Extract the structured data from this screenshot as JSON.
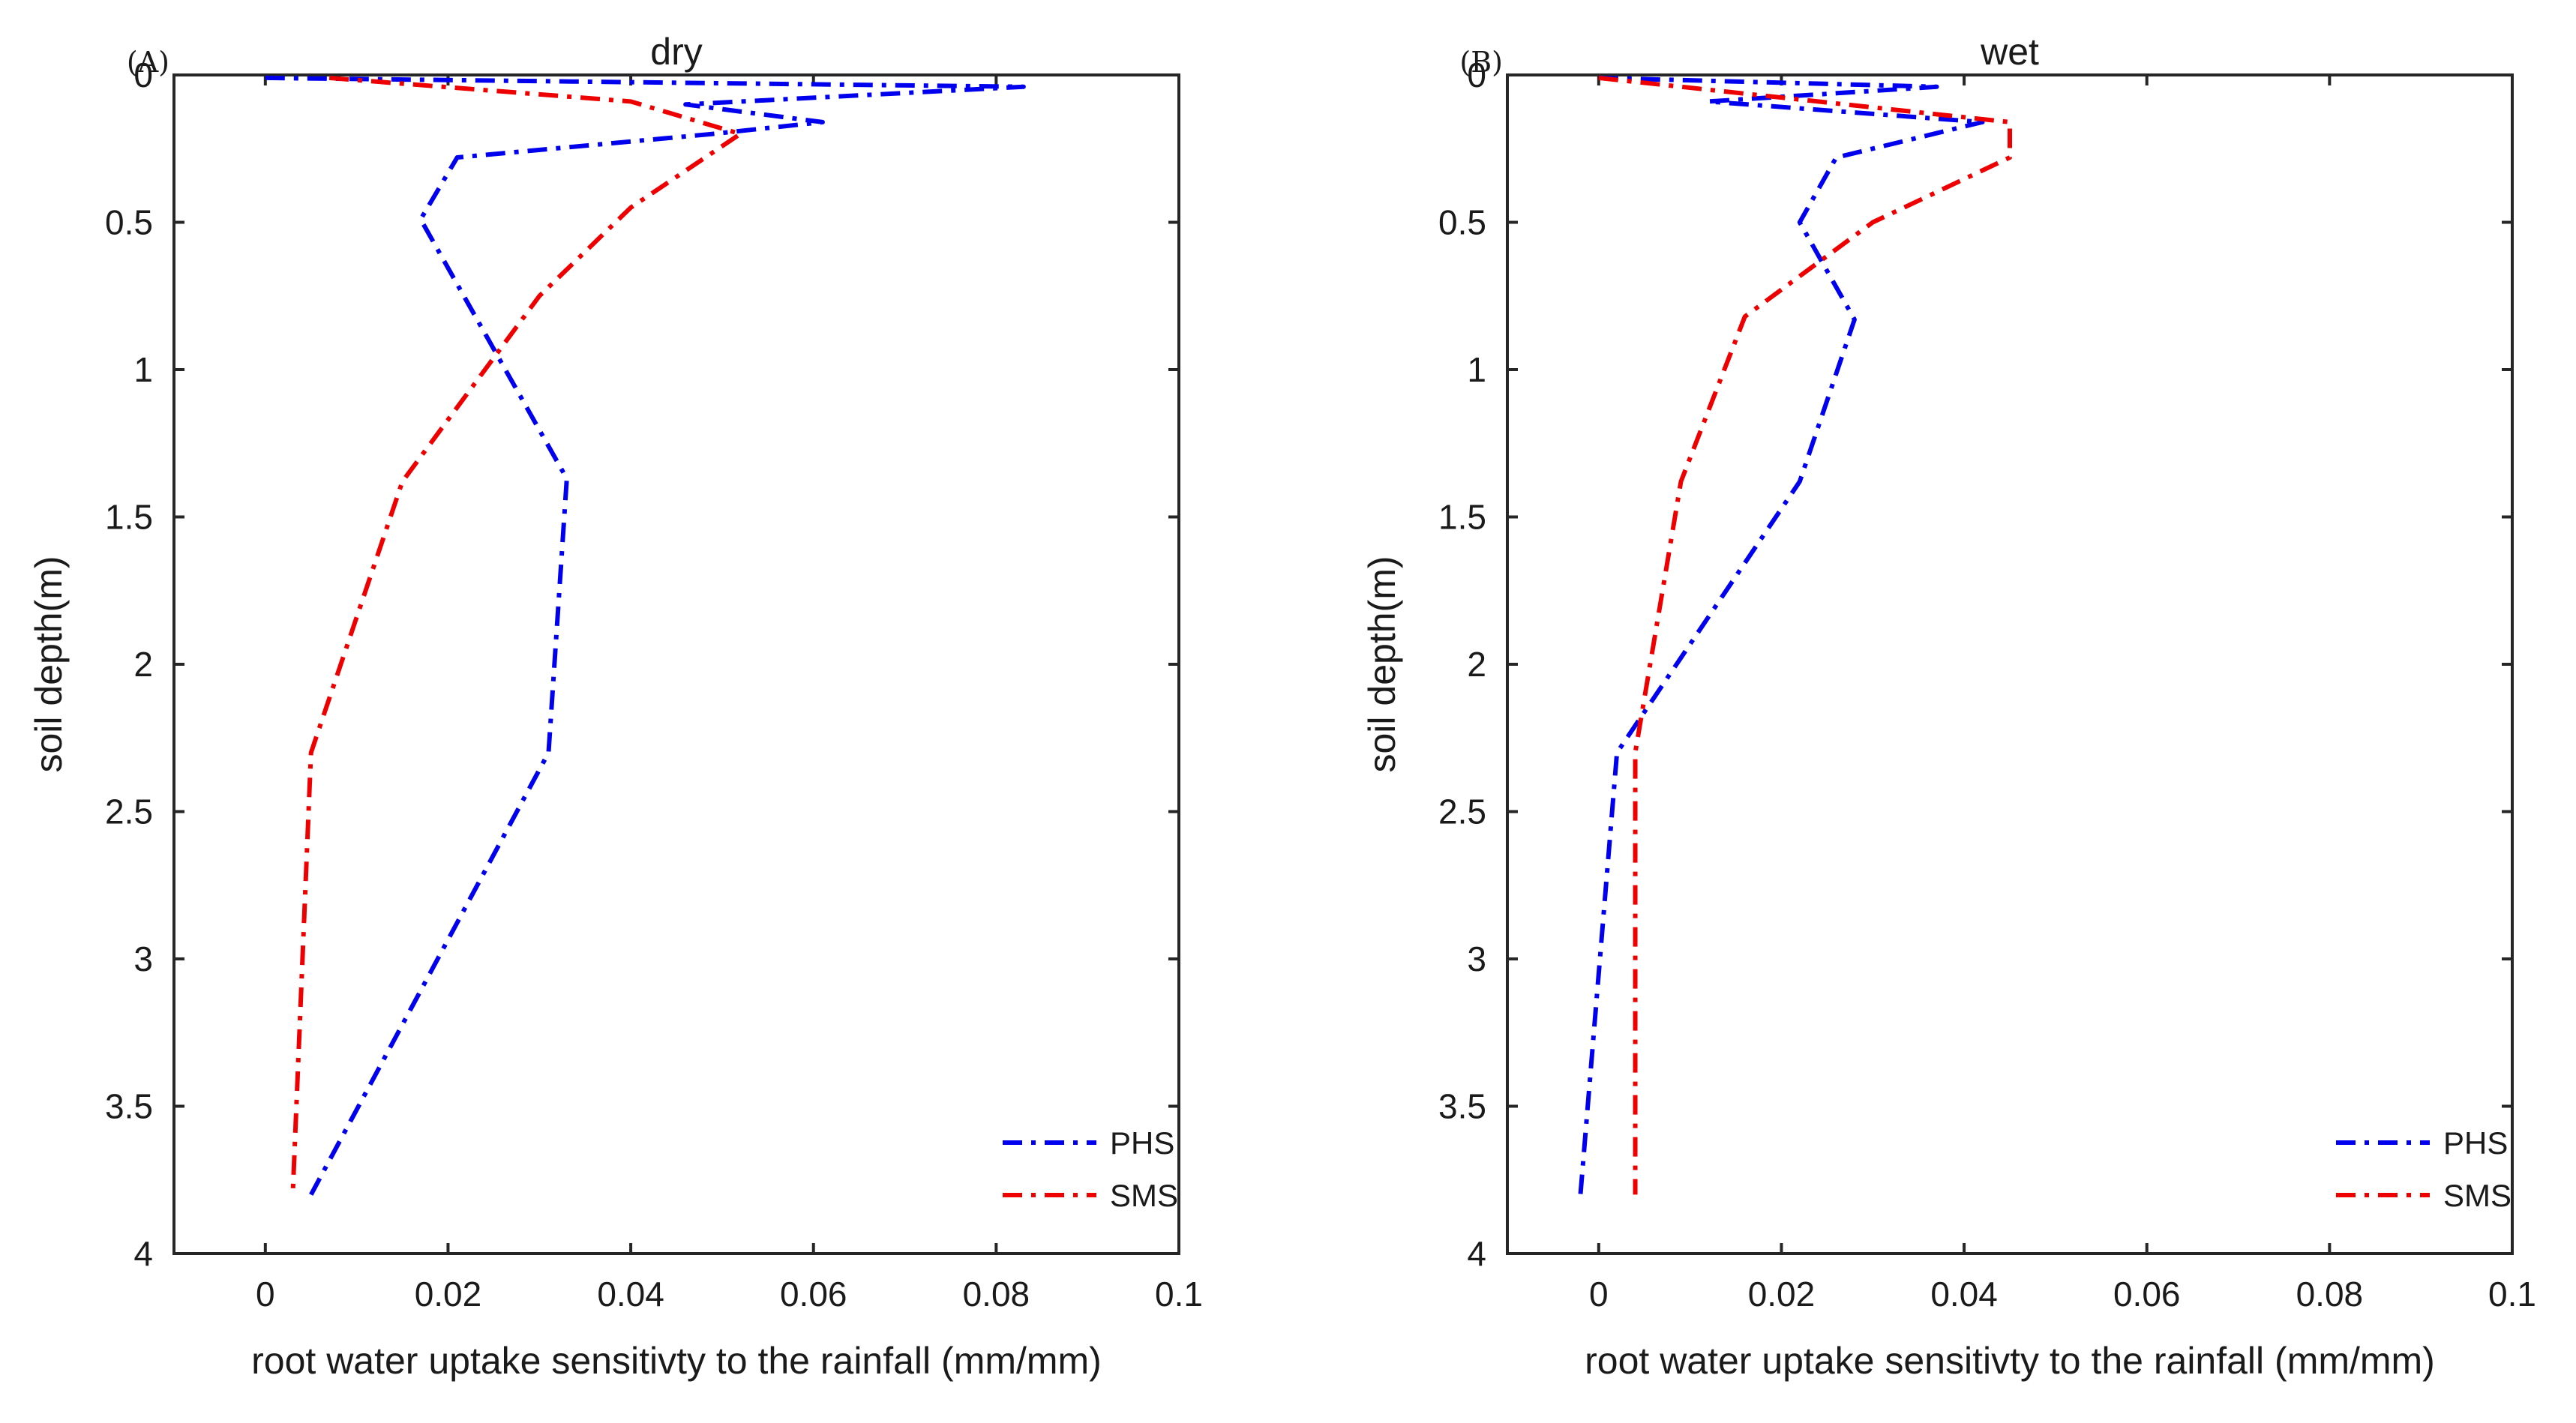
{
  "figure": "Root water uptake sensitivity to rainfall vs soil depth, dry and wet conditions",
  "chart_data": [
    {
      "type": "line",
      "panel_label": "(A)",
      "title": "dry",
      "xlabel": "root water uptake sensitivty to the rainfall (mm/mm)",
      "ylabel": "soil depth(m)",
      "xlim": [
        -0.01,
        0.1
      ],
      "ylim": [
        4,
        0
      ],
      "xticks": [
        0,
        0.02,
        0.04,
        0.06,
        0.08,
        0.1
      ],
      "xtick_labels": [
        "0",
        "0.02",
        "0.04",
        "0.06",
        "0.08",
        "0.1"
      ],
      "yticks": [
        0,
        0.5,
        1,
        1.5,
        2,
        2.5,
        3,
        3.5,
        4
      ],
      "ytick_labels": [
        "0",
        "0.5",
        "1",
        "1.5",
        "2",
        "2.5",
        "3",
        "3.5",
        "4"
      ],
      "legend_position": "bottom-right",
      "series": [
        {
          "name": "PHS",
          "color": "#0000ee",
          "dash": "dash-dot",
          "points": [
            [
              0.0,
              0.01
            ],
            [
              0.083,
              0.04
            ],
            [
              0.046,
              0.1
            ],
            [
              0.061,
              0.16
            ],
            [
              0.049,
              0.2
            ],
            [
              0.021,
              0.28
            ],
            [
              0.017,
              0.49
            ],
            [
              0.033,
              1.37
            ],
            [
              0.031,
              2.3
            ],
            [
              0.005,
              3.8
            ]
          ]
        },
        {
          "name": "SMS",
          "color": "#ee0000",
          "dash": "dash-dot",
          "points": [
            [
              0.007,
              0.01
            ],
            [
              0.04,
              0.09
            ],
            [
              0.052,
              0.2
            ],
            [
              0.04,
              0.45
            ],
            [
              0.03,
              0.75
            ],
            [
              0.015,
              1.38
            ],
            [
              0.005,
              2.3
            ],
            [
              0.003,
              3.8
            ]
          ]
        }
      ]
    },
    {
      "type": "line",
      "panel_label": "(B)",
      "title": "wet",
      "xlabel": "root water uptake sensitivty to the rainfall (mm/mm)",
      "ylabel": "soil depth(m)",
      "xlim": [
        -0.01,
        0.1
      ],
      "ylim": [
        4,
        0
      ],
      "xticks": [
        0,
        0.02,
        0.04,
        0.06,
        0.08,
        0.1
      ],
      "xtick_labels": [
        "0",
        "0.02",
        "0.04",
        "0.06",
        "0.08",
        "0.1"
      ],
      "yticks": [
        0,
        0.5,
        1,
        1.5,
        2,
        2.5,
        3,
        3.5,
        4
      ],
      "ytick_labels": [
        "0",
        "0.5",
        "1",
        "1.5",
        "2",
        "2.5",
        "3",
        "3.5",
        "4"
      ],
      "legend_position": "bottom-right",
      "series": [
        {
          "name": "PHS",
          "color": "#0000ee",
          "dash": "dash-dot",
          "points": [
            [
              0.0,
              0.01
            ],
            [
              0.037,
              0.04
            ],
            [
              0.012,
              0.09
            ],
            [
              0.042,
              0.16
            ],
            [
              0.026,
              0.28
            ],
            [
              0.022,
              0.5
            ],
            [
              0.028,
              0.83
            ],
            [
              0.022,
              1.38
            ],
            [
              0.002,
              2.3
            ],
            [
              -0.002,
              3.8
            ]
          ]
        },
        {
          "name": "SMS",
          "color": "#ee0000",
          "dash": "dash-dot",
          "points": [
            [
              0.0,
              0.01
            ],
            [
              0.045,
              0.16
            ],
            [
              0.045,
              0.28
            ],
            [
              0.03,
              0.5
            ],
            [
              0.016,
              0.82
            ],
            [
              0.009,
              1.38
            ],
            [
              0.004,
              2.3
            ],
            [
              0.004,
              3.8
            ]
          ]
        }
      ]
    }
  ]
}
